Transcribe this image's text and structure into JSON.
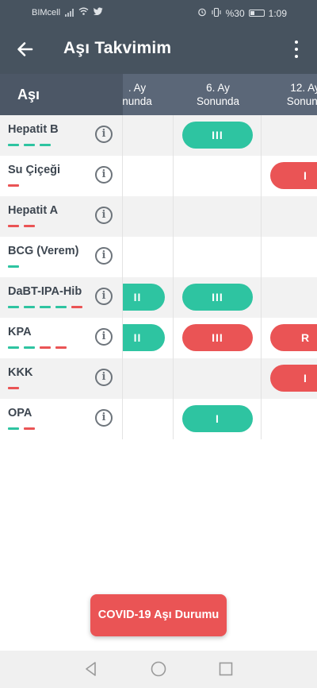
{
  "status_bar": {
    "carrier": "BIMcell",
    "battery": "%30",
    "time": "1:09"
  },
  "app_bar": {
    "title": "Aşı Takvimim",
    "back_icon": "arrow-left-icon",
    "menu_icon": "more-vert-icon"
  },
  "table": {
    "vaccine_header": "Aşı",
    "columns": [
      {
        "line1": ". Ay",
        "line2": "nunda"
      },
      {
        "line1": "6. Ay",
        "line2": "Sonunda"
      },
      {
        "line1": "12. Ay",
        "line2": "Sonund"
      }
    ],
    "rows": [
      {
        "name": "Hepatit B",
        "dashes": [
          "#2ec4a1",
          "#2ec4a1",
          "#2ec4a1"
        ],
        "cells": [
          "",
          "III",
          ""
        ]
      },
      {
        "name": "Su Çiçeği",
        "dashes": [
          "#ea5455"
        ],
        "cells": [
          "",
          "",
          "I"
        ]
      },
      {
        "name": "Hepatit A",
        "dashes": [
          "#ea5455",
          "#ea5455"
        ],
        "cells": [
          "",
          "",
          ""
        ]
      },
      {
        "name": "BCG (Verem)",
        "dashes": [
          "#2ec4a1"
        ],
        "cells": [
          "",
          "",
          ""
        ]
      },
      {
        "name": "DaBT-IPA-Hib",
        "dashes": [
          "#2ec4a1",
          "#2ec4a1",
          "#2ec4a1",
          "#2ec4a1",
          "#ea5455"
        ],
        "cells": [
          "II",
          "III",
          ""
        ]
      },
      {
        "name": "KPA",
        "dashes": [
          "#2ec4a1",
          "#2ec4a1",
          "#ea5455",
          "#ea5455"
        ],
        "cells": [
          "II",
          "III",
          "R"
        ]
      },
      {
        "name": "KKK",
        "dashes": [
          "#ea5455"
        ],
        "cells": [
          "",
          "",
          "I"
        ]
      },
      {
        "name": "OPA",
        "dashes": [
          "#2ec4a1",
          "#ea5455"
        ],
        "cells": [
          "",
          "I",
          ""
        ]
      }
    ],
    "cell_colors": [
      [
        "",
        "#2ec4a1",
        ""
      ],
      [
        "",
        "",
        "#ea5455"
      ],
      [
        "",
        "",
        ""
      ],
      [
        "",
        "",
        ""
      ],
      [
        "#2ec4a1",
        "#2ec4a1",
        ""
      ],
      [
        "#2ec4a1",
        "#ea5455",
        "#ea5455"
      ],
      [
        "",
        "",
        "#ea5455"
      ],
      [
        "",
        "#2ec4a1",
        ""
      ]
    ]
  },
  "covid_button": {
    "label": "COVID-19 Aşı Durumu"
  },
  "colors": {
    "header": "#47535f",
    "table_header": "#5b6778",
    "green": "#2ec4a1",
    "red": "#ea5455"
  }
}
